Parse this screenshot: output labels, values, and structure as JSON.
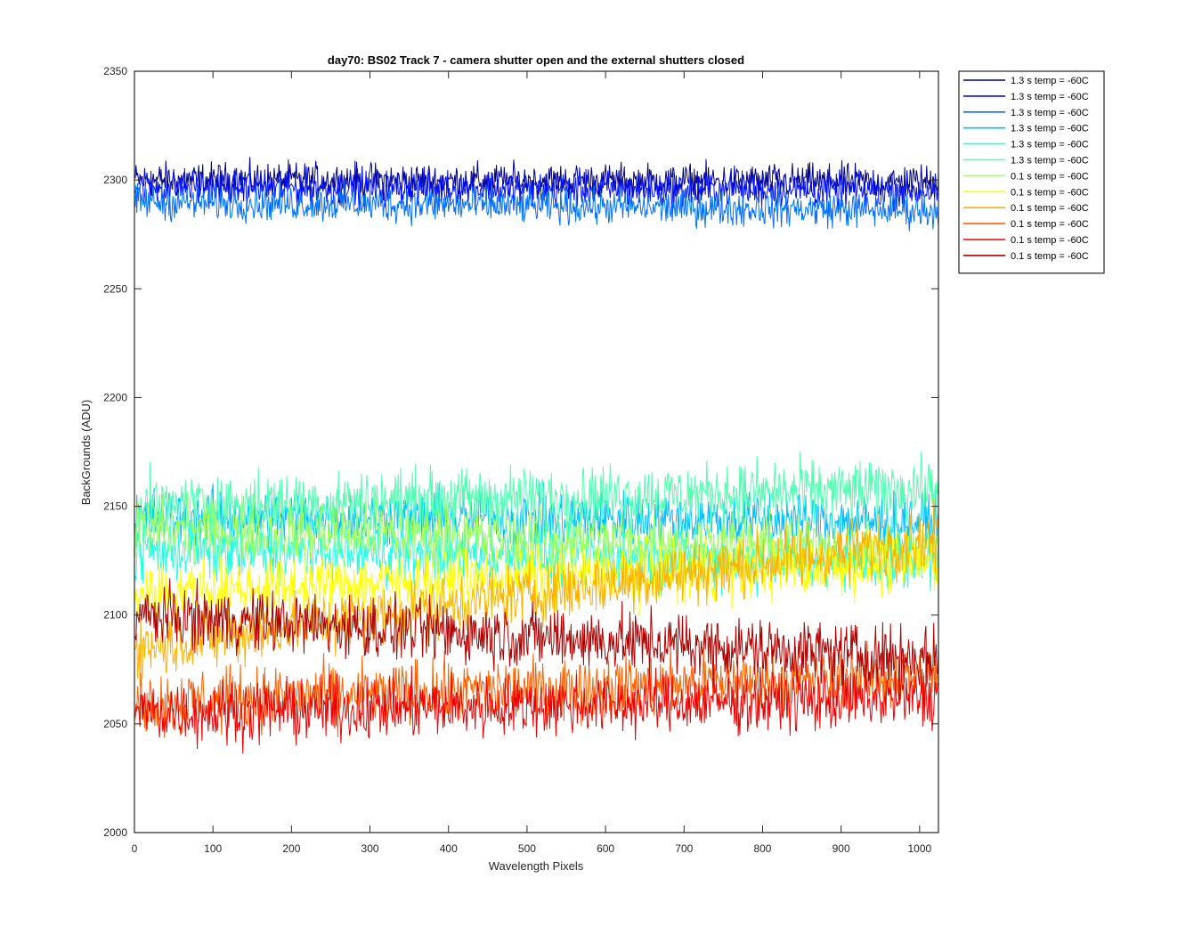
{
  "chart_data": {
    "type": "line",
    "title": "day70: BS02  Track 7 - camera shutter open and the external shutters closed",
    "xlabel": "Wavelength Pixels",
    "ylabel": "BackGrounds (ADU)",
    "xlim": [
      0,
      1024
    ],
    "ylim": [
      2000,
      2350
    ],
    "xticks": [
      0,
      100,
      200,
      300,
      400,
      500,
      600,
      700,
      800,
      900,
      1000
    ],
    "yticks": [
      2000,
      2050,
      2100,
      2150,
      2200,
      2250,
      2300,
      2350
    ],
    "grid": false,
    "legend_position": "outside-top-right",
    "x_start": 1,
    "x_end": 1024,
    "series": [
      {
        "name": "1.3 s temp = -60C",
        "color": "#00008f",
        "mean_start": 2300,
        "mean_end": 2299,
        "noise_amplitude": 8
      },
      {
        "name": "1.3 s temp = -60C",
        "color": "#0010ff",
        "mean_start": 2297,
        "mean_end": 2295,
        "noise_amplitude": 8
      },
      {
        "name": "1.3 s temp = -60C",
        "color": "#0070ff",
        "mean_start": 2290,
        "mean_end": 2286,
        "noise_amplitude": 8
      },
      {
        "name": "1.3 s temp = -60C",
        "color": "#00c0ff",
        "mean_start": 2145,
        "mean_end": 2143,
        "noise_amplitude": 13
      },
      {
        "name": "1.3 s temp = -60C",
        "color": "#20ffdf",
        "mean_start": 2130,
        "mean_end": 2125,
        "noise_amplitude": 14
      },
      {
        "name": "1.3 s temp = -60C",
        "color": "#4fffaf",
        "mean_start": 2150,
        "mean_end": 2158,
        "noise_amplitude": 14
      },
      {
        "name": "0.1 s temp = -60C",
        "color": "#a0ff5f",
        "mean_start": 2140,
        "mean_end": 2130,
        "noise_amplitude": 14
      },
      {
        "name": "0.1 s temp = -60C",
        "color": "#ffff00",
        "mean_start": 2110,
        "mean_end": 2125,
        "noise_amplitude": 14
      },
      {
        "name": "0.1 s temp = -60C",
        "color": "#ffaf00",
        "mean_start": 2085,
        "mean_end": 2135,
        "noise_amplitude": 14
      },
      {
        "name": "0.1 s temp = -60C",
        "color": "#ff5f00",
        "mean_start": 2060,
        "mean_end": 2072,
        "noise_amplitude": 14
      },
      {
        "name": "0.1 s temp = -60C",
        "color": "#ef0000",
        "mean_start": 2055,
        "mean_end": 2062,
        "noise_amplitude": 14
      },
      {
        "name": "0.1 s temp = -60C",
        "color": "#af0000",
        "mean_start": 2100,
        "mean_end": 2080,
        "noise_amplitude": 14
      }
    ]
  }
}
